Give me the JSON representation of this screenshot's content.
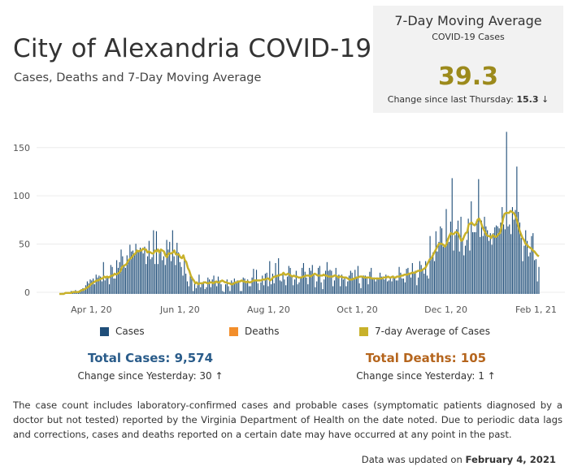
{
  "header": {
    "title": "City of Alexandria COVID-19",
    "subtitle": "Cases, Deaths  and 7-Day Moving Average"
  },
  "kpi": {
    "title": "7-Day Moving Average",
    "subtitle": "COVID-19 Cases",
    "value": "39.3",
    "change_label": "Change since last Thursday:",
    "change_value": "15.3",
    "change_arrow": "↓"
  },
  "legend": [
    {
      "label": "Cases",
      "color": "#1f4e79"
    },
    {
      "label": "Deaths",
      "color": "#f28e2b"
    },
    {
      "label": "7-day Average of Cases",
      "color": "#c8b12a"
    }
  ],
  "totals": {
    "cases_label": "Total Cases: 9,574",
    "cases_change": "Change since Yesterday: 30 ↑",
    "deaths_label": "Total Deaths: 105",
    "deaths_change": "Change since Yesterday: 1 ↑"
  },
  "colors": {
    "cases": "#1f4e79",
    "deaths_text": "#b5651d",
    "average": "#c8b12a",
    "kpi_value": "#9c8a1c"
  },
  "footnote": "The case count includes laboratory-confirmed cases and probable cases (symptomatic patients diagnosed by a doctor but not tested) reported by the Virginia Department of Health on the date noted. Due to periodic data lags and corrections, cases and deaths reported on a certain date may have occurred at any point in the past.",
  "updated": {
    "prefix": "Data was updated on",
    "date": "February 4, 2021"
  },
  "chart_data": {
    "type": "bar",
    "x_start": "2020-03-10",
    "x_end": "2021-02-03",
    "ylim": [
      0,
      170
    ],
    "y_ticks": [
      0,
      50,
      100,
      150
    ],
    "x_tick_labels": [
      {
        "date": "2020-04-01",
        "label": "Apr 1, 20"
      },
      {
        "date": "2020-06-01",
        "label": "Jun 1, 20"
      },
      {
        "date": "2020-08-01",
        "label": "Aug 1, 20"
      },
      {
        "date": "2020-10-01",
        "label": "Oct 1, 20"
      },
      {
        "date": "2020-12-01",
        "label": "Dec 1, 20"
      },
      {
        "date": "2021-02-01",
        "label": "Feb 1, 21"
      }
    ],
    "grid": true,
    "series": [
      {
        "name": "Cases",
        "type": "bar",
        "color": "#1f4e79",
        "values": [
          0,
          0,
          1,
          0,
          1,
          1,
          2,
          1,
          3,
          1,
          2,
          4,
          2,
          3,
          4,
          5,
          6,
          5,
          9,
          13,
          11,
          15,
          14,
          16,
          10,
          20,
          17,
          19,
          18,
          13,
          33,
          14,
          18,
          17,
          10,
          30,
          28,
          16,
          16,
          35,
          27,
          33,
          46,
          39,
          30,
          27,
          40,
          35,
          51,
          44,
          45,
          40,
          52,
          44,
          45,
          48,
          46,
          42,
          49,
          31,
          39,
          55,
          36,
          38,
          66,
          31,
          65,
          31,
          42,
          45,
          35,
          39,
          30,
          56,
          46,
          54,
          34,
          66,
          39,
          30,
          53,
          43,
          33,
          28,
          19,
          35,
          21,
          13,
          8,
          19,
          16,
          3,
          11,
          6,
          9,
          20,
          7,
          11,
          13,
          5,
          7,
          17,
          15,
          7,
          15,
          19,
          12,
          8,
          18,
          14,
          10,
          3,
          2,
          10,
          15,
          8,
          3,
          14,
          12,
          16,
          13,
          14,
          13,
          3,
          3,
          17,
          16,
          11,
          15,
          8,
          8,
          17,
          26,
          14,
          25,
          11,
          4,
          12,
          19,
          9,
          21,
          22,
          8,
          34,
          10,
          21,
          11,
          32,
          19,
          37,
          14,
          13,
          22,
          15,
          9,
          18,
          29,
          27,
          19,
          9,
          15,
          24,
          10,
          12,
          16,
          27,
          32,
          23,
          17,
          10,
          27,
          24,
          30,
          20,
          7,
          13,
          27,
          29,
          12,
          5,
          15,
          24,
          33,
          24,
          25,
          24,
          8,
          14,
          27,
          18,
          20,
          8,
          20,
          15,
          16,
          8,
          13,
          19,
          24,
          22,
          16,
          25,
          18,
          29,
          11,
          6,
          18,
          19,
          19,
          16,
          10,
          23,
          27,
          17,
          17,
          13,
          17,
          15,
          22,
          18,
          18,
          15,
          20,
          13,
          14,
          16,
          13,
          19,
          17,
          14,
          14,
          28,
          22,
          16,
          16,
          12,
          26,
          27,
          21,
          17,
          32,
          23,
          24,
          9,
          17,
          34,
          30,
          25,
          21,
          34,
          19,
          16,
          60,
          36,
          43,
          34,
          65,
          44,
          54,
          70,
          68,
          49,
          48,
          88,
          58,
          54,
          75,
          120,
          45,
          61,
          67,
          76,
          44,
          80,
          58,
          40,
          50,
          56,
          78,
          45,
          96,
          64,
          64,
          64,
          76,
          119,
          59,
          76,
          60,
          80,
          70,
          66,
          55,
          63,
          51,
          63,
          69,
          71,
          70,
          68,
          74,
          90,
          72,
          67,
          168,
          70,
          72,
          62,
          90,
          77,
          87,
          132,
          85,
          74,
          58,
          34,
          50,
          66,
          55,
          39,
          43,
          60,
          63,
          35,
          36,
          13,
          28
        ]
      },
      {
        "name": "7-day Average of Cases",
        "type": "line",
        "color": "#c8b12a",
        "values": [
          0,
          0,
          0,
          0,
          1,
          1,
          1,
          1,
          1,
          2,
          2,
          2,
          2,
          2,
          3,
          4,
          4,
          5,
          6,
          7,
          8,
          10,
          11,
          12,
          13,
          14,
          14,
          15,
          16,
          16,
          18,
          17,
          18,
          17,
          18,
          19,
          19,
          21,
          20,
          21,
          22,
          24,
          28,
          29,
          30,
          31,
          34,
          36,
          37,
          39,
          41,
          42,
          45,
          44,
          45,
          45,
          47,
          46,
          46,
          43,
          44,
          43,
          42,
          42,
          45,
          44,
          46,
          43,
          46,
          45,
          44,
          40,
          38,
          42,
          42,
          42,
          43,
          45,
          41,
          41,
          41,
          38,
          37,
          40,
          35,
          33,
          27,
          24,
          19,
          16,
          14,
          11,
          12,
          10,
          11,
          11,
          11,
          12,
          12,
          11,
          11,
          12,
          12,
          11,
          12,
          13,
          12,
          12,
          13,
          14,
          13,
          12,
          12,
          11,
          11,
          10,
          10,
          11,
          12,
          12,
          13,
          13,
          14,
          13,
          13,
          12,
          13,
          12,
          12,
          13,
          14,
          14,
          14,
          14,
          14,
          14,
          15,
          15,
          15,
          16,
          16,
          14,
          15,
          17,
          18,
          18,
          19,
          19,
          20,
          20,
          22,
          20,
          20,
          21,
          20,
          19,
          18,
          19,
          18,
          18,
          17,
          17,
          17,
          18,
          18,
          19,
          19,
          19,
          18,
          19,
          20,
          21,
          20,
          19,
          19,
          19,
          19,
          20,
          19,
          19,
          18,
          18,
          18,
          18,
          19,
          19,
          18,
          17,
          18,
          18,
          17,
          17,
          17,
          16,
          15,
          15,
          15,
          16,
          16,
          17,
          17,
          18,
          18,
          18,
          17,
          17,
          17,
          17,
          17,
          16,
          16,
          16,
          16,
          16,
          16,
          16,
          16,
          17,
          17,
          17,
          18,
          17,
          17,
          18,
          17,
          17,
          18,
          18,
          18,
          19,
          19,
          20,
          20,
          20,
          21,
          21,
          22,
          22,
          22,
          23,
          24,
          24,
          24,
          25,
          26,
          27,
          30,
          33,
          36,
          37,
          40,
          43,
          46,
          49,
          52,
          52,
          52,
          51,
          49,
          51,
          56,
          60,
          63,
          62,
          62,
          64,
          64,
          63,
          59,
          55,
          56,
          60,
          63,
          64,
          72,
          73,
          74,
          72,
          71,
          73,
          77,
          78,
          75,
          70,
          67,
          64,
          61,
          60,
          60,
          58,
          61,
          60,
          59,
          60,
          62,
          63,
          69,
          78,
          83,
          84,
          84,
          84,
          86,
          85,
          84,
          82,
          78,
          72,
          66,
          62,
          58,
          56,
          52,
          51,
          49,
          48,
          47,
          45,
          44,
          42,
          40,
          39
        ]
      },
      {
        "name": "Deaths",
        "type": "bar",
        "color": "#f28e2b",
        "values": []
      }
    ]
  }
}
